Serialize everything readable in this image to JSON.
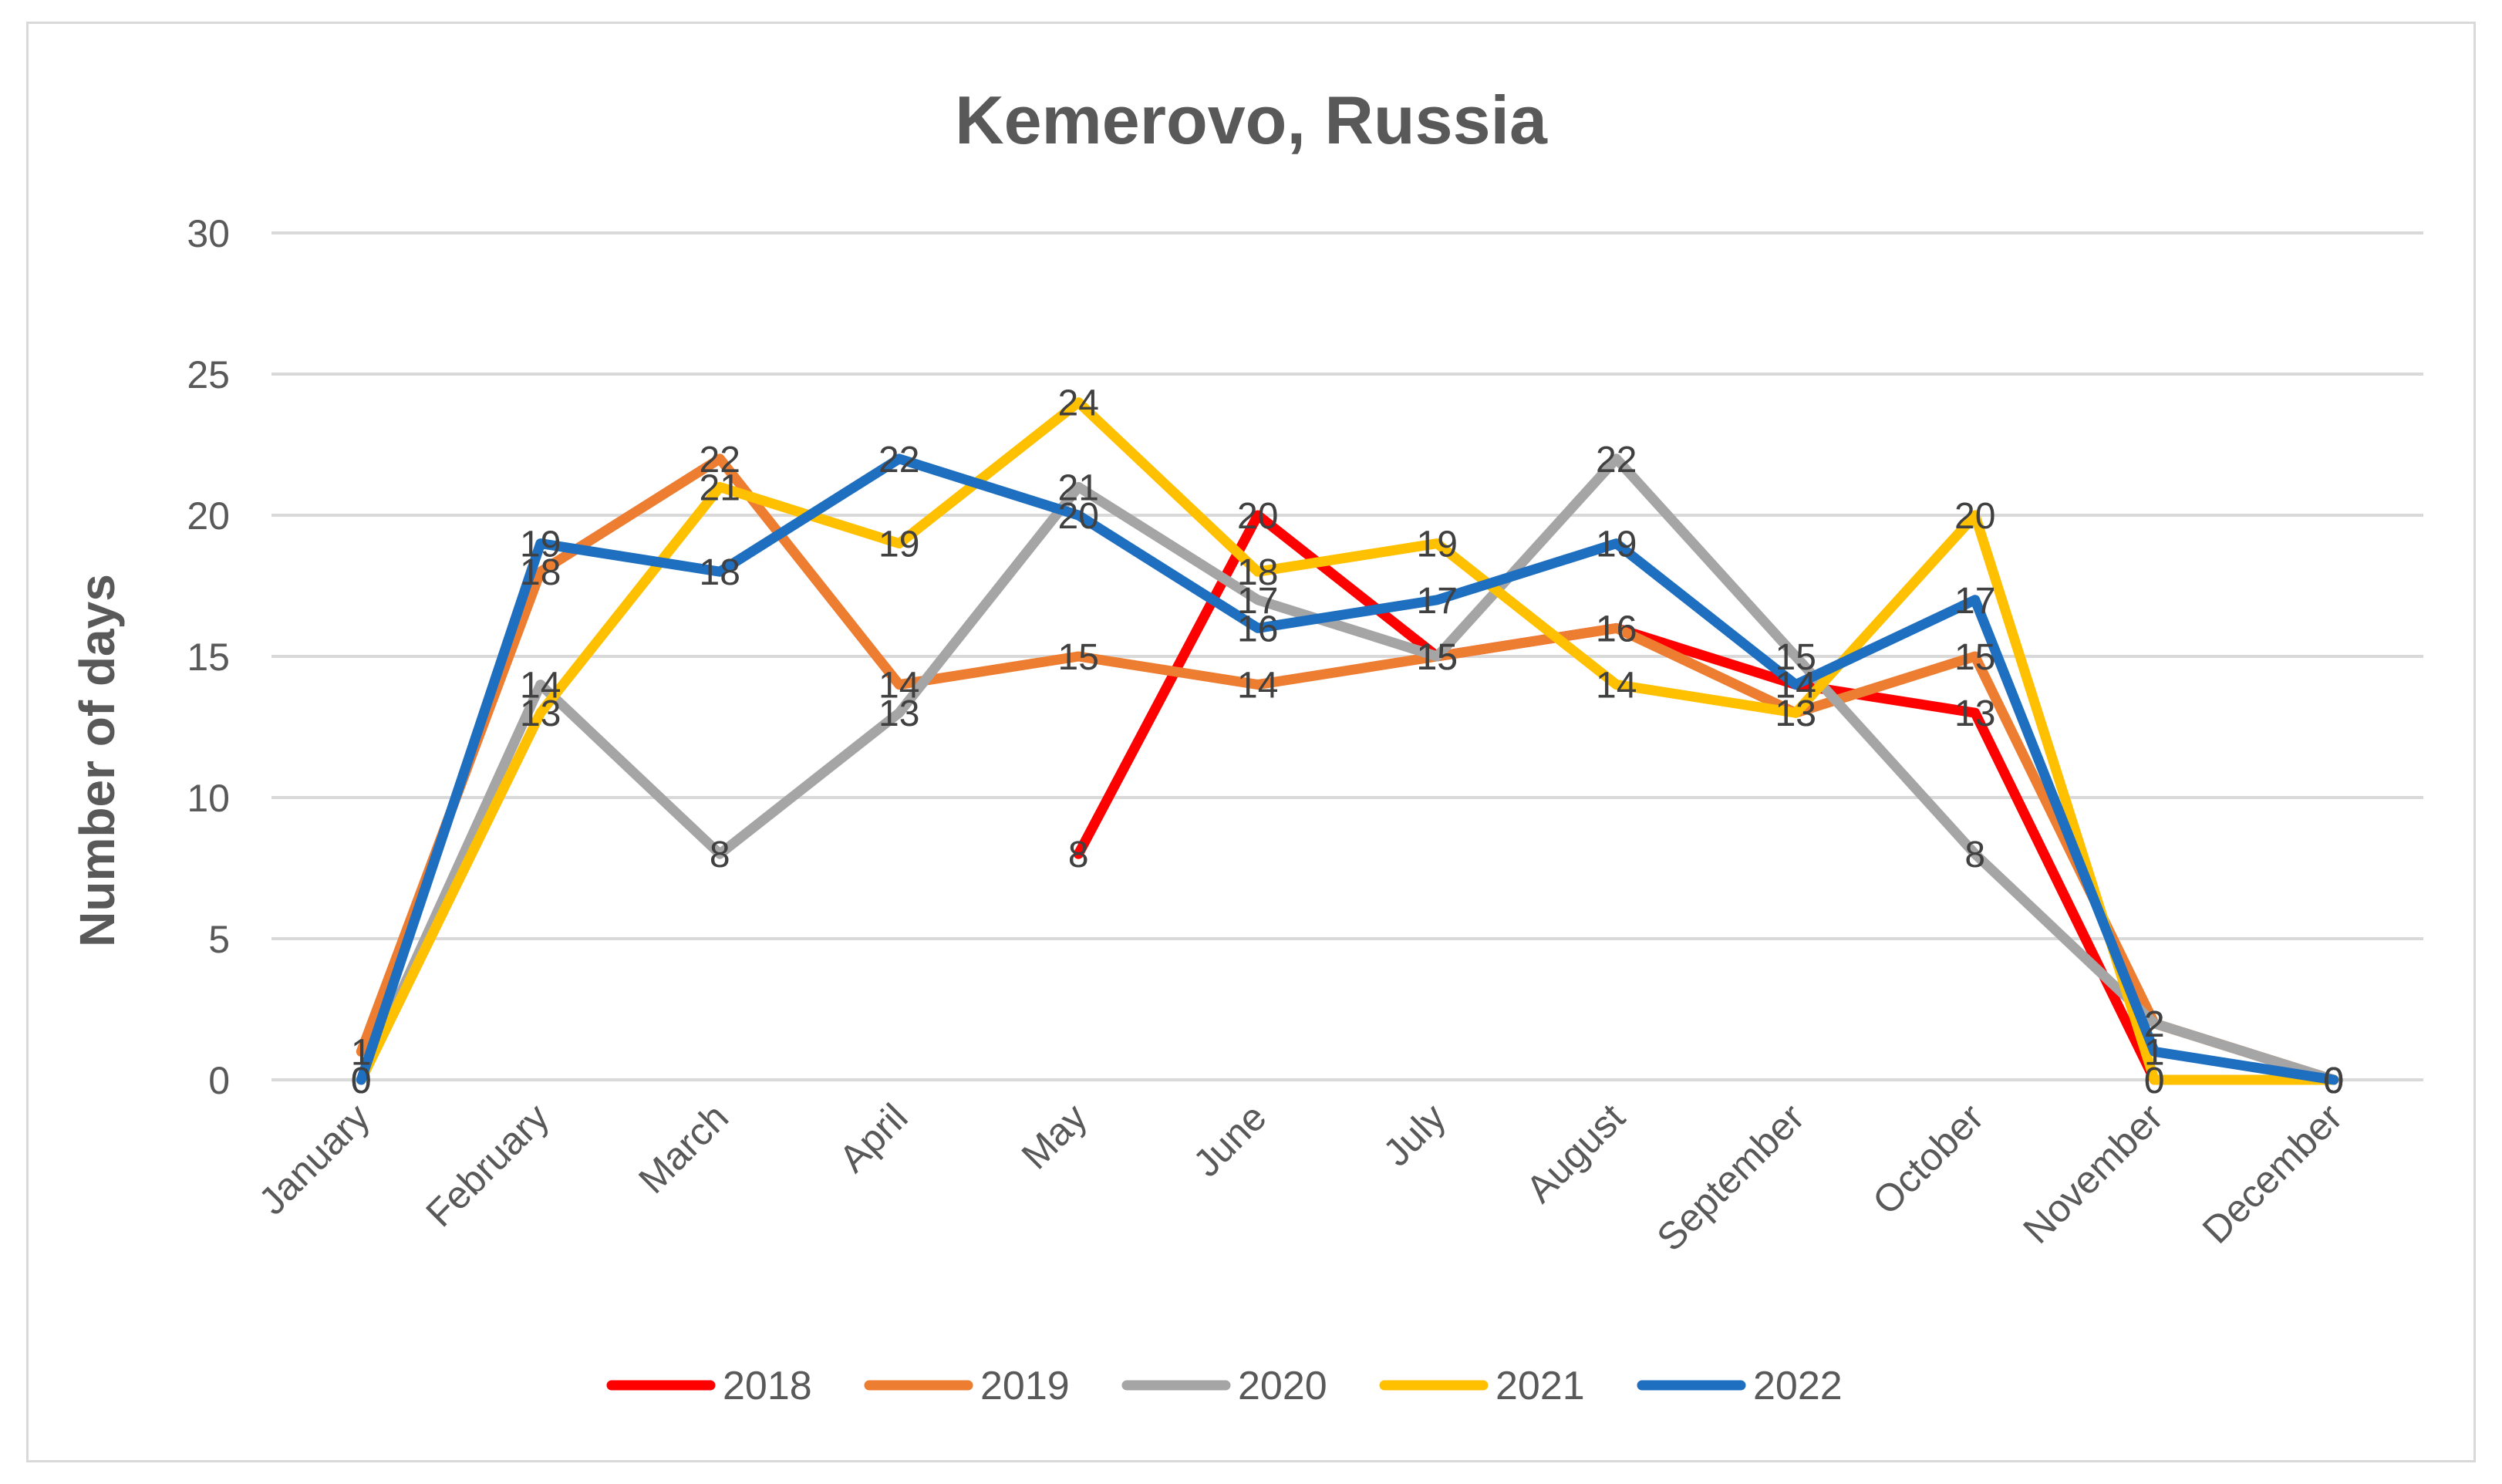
{
  "chart_data": {
    "type": "line",
    "title": "Kemerovo, Russia",
    "ylabel": "Number of days",
    "xlabel": "",
    "ylim": [
      0,
      30
    ],
    "yticks": [
      0,
      5,
      10,
      15,
      20,
      25,
      30
    ],
    "grid": true,
    "legend": "bottom",
    "categories": [
      "January",
      "February",
      "March",
      "April",
      "May",
      "June",
      "July",
      "August",
      "September",
      "October",
      "November",
      "December"
    ],
    "series": [
      {
        "name": "2018",
        "color": "#ff0000",
        "values": [
          null,
          null,
          null,
          null,
          8,
          20,
          15,
          16,
          14,
          13,
          0,
          0
        ]
      },
      {
        "name": "2019",
        "color": "#ed7d31",
        "values": [
          1,
          18,
          22,
          14,
          15,
          14,
          15,
          16,
          13,
          15,
          2,
          0
        ]
      },
      {
        "name": "2020",
        "color": "#a5a5a5",
        "values": [
          0,
          14,
          8,
          13,
          21,
          17,
          15,
          22,
          15,
          8,
          2,
          0
        ]
      },
      {
        "name": "2021",
        "color": "#ffc000",
        "values": [
          0,
          13,
          21,
          19,
          24,
          18,
          19,
          14,
          13,
          20,
          0,
          0
        ]
      },
      {
        "name": "2022",
        "color": "#1f6fc0",
        "values": [
          0,
          19,
          18,
          22,
          20,
          16,
          17,
          19,
          14,
          17,
          1,
          0
        ]
      }
    ]
  }
}
